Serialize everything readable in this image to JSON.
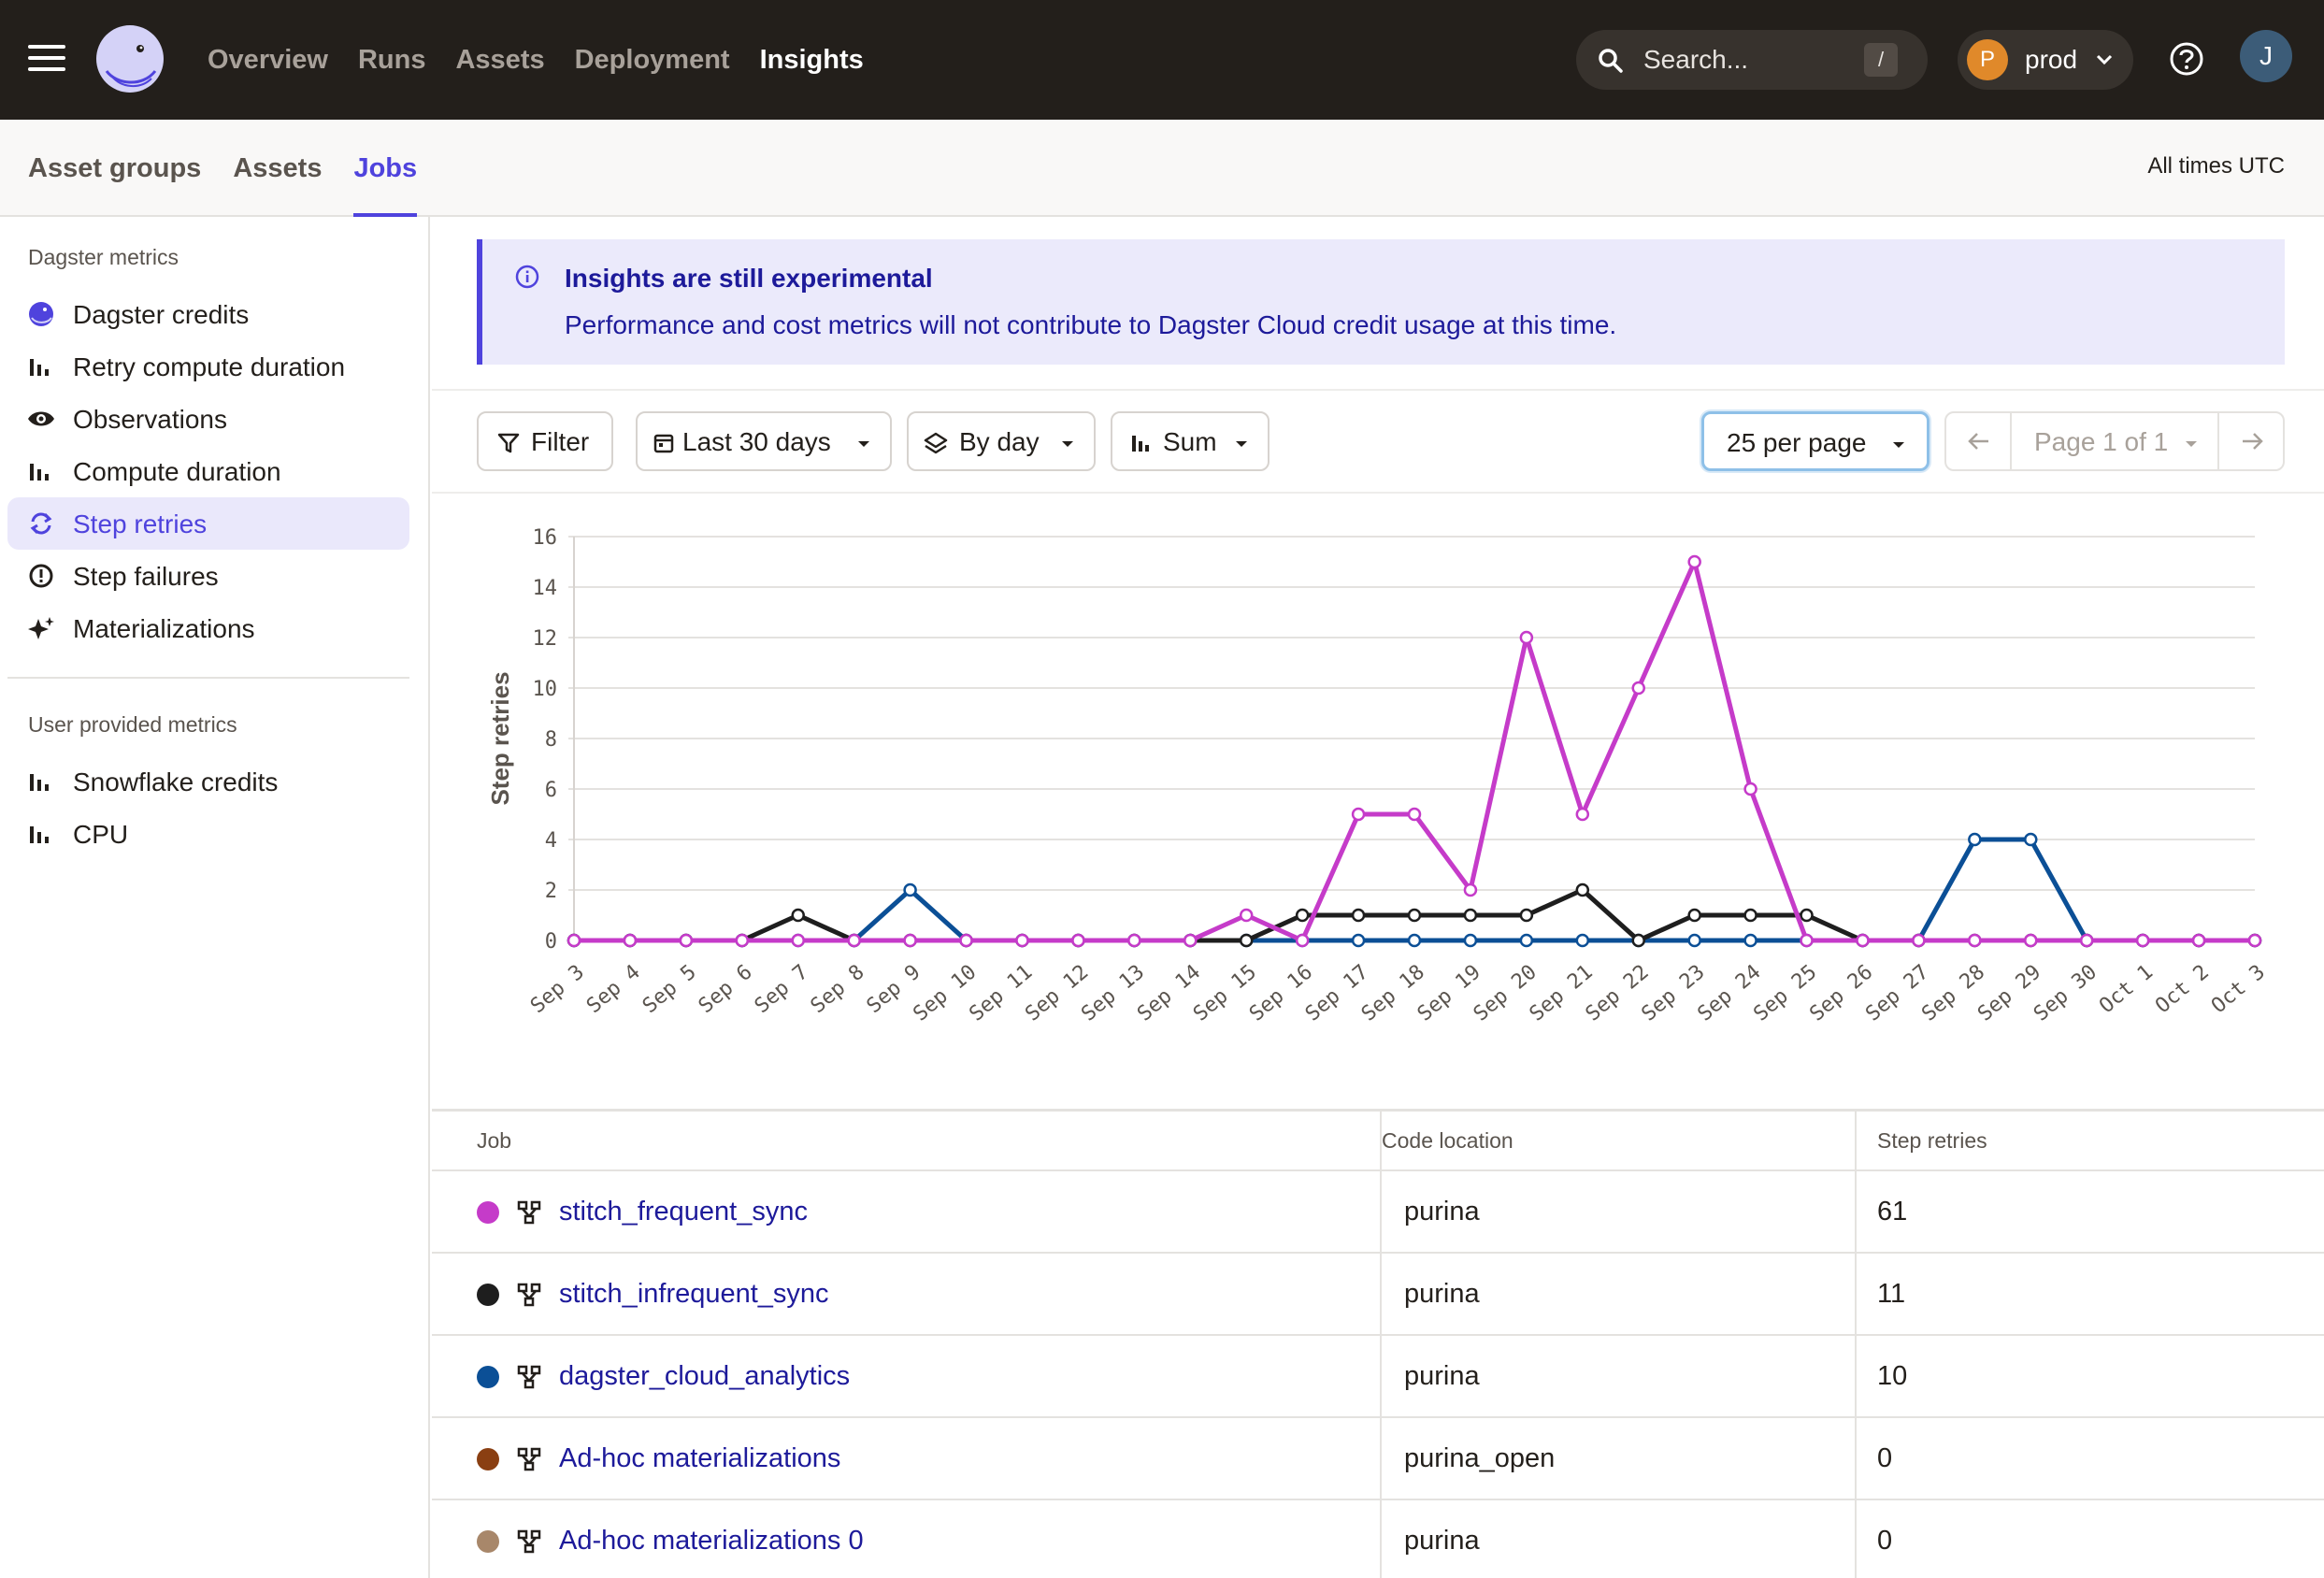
{
  "topbar": {
    "nav": [
      "Overview",
      "Runs",
      "Assets",
      "Deployment",
      "Insights"
    ],
    "active_nav": "Insights",
    "search_placeholder": "Search...",
    "search_shortcut": "/",
    "deployment": {
      "initial": "P",
      "name": "prod"
    },
    "user_initial": "J"
  },
  "subheader": {
    "tabs": [
      "Asset groups",
      "Assets",
      "Jobs"
    ],
    "active_tab": "Jobs",
    "times_label": "All times UTC"
  },
  "sidebar": {
    "dagster_heading": "Dagster metrics",
    "dagster_items": [
      {
        "label": "Dagster credits",
        "icon": "dagster-logo-icon"
      },
      {
        "label": "Retry compute duration",
        "icon": "bar-chart-icon"
      },
      {
        "label": "Observations",
        "icon": "eye-icon"
      },
      {
        "label": "Compute duration",
        "icon": "bar-chart-icon"
      },
      {
        "label": "Step retries",
        "icon": "retry-icon",
        "active": true
      },
      {
        "label": "Step failures",
        "icon": "alert-circle-icon"
      },
      {
        "label": "Materializations",
        "icon": "sparkle-icon"
      }
    ],
    "user_heading": "User provided metrics",
    "user_items": [
      {
        "label": "Snowflake credits",
        "icon": "bar-chart-icon"
      },
      {
        "label": "CPU",
        "icon": "bar-chart-icon"
      }
    ]
  },
  "banner": {
    "title": "Insights are still experimental",
    "text": "Performance and cost metrics will not contribute to Dagster Cloud credit usage at this time."
  },
  "toolbar": {
    "filter": "Filter",
    "range": "Last 30 days",
    "grouping": "By day",
    "aggregation": "Sum",
    "page_size": "25 per page",
    "page_label": "Page 1 of 1"
  },
  "chart_data": {
    "type": "line",
    "ylabel": "Step retries",
    "xlabel": "",
    "ylim": [
      0,
      16
    ],
    "yticks": [
      0,
      2,
      4,
      6,
      8,
      10,
      12,
      14,
      16
    ],
    "grid": true,
    "categories": [
      "Sep 3",
      "Sep 4",
      "Sep 5",
      "Sep 6",
      "Sep 7",
      "Sep 8",
      "Sep 9",
      "Sep 10",
      "Sep 11",
      "Sep 12",
      "Sep 13",
      "Sep 14",
      "Sep 15",
      "Sep 16",
      "Sep 17",
      "Sep 18",
      "Sep 19",
      "Sep 20",
      "Sep 21",
      "Sep 22",
      "Sep 23",
      "Sep 24",
      "Sep 25",
      "Sep 26",
      "Sep 27",
      "Sep 28",
      "Sep 29",
      "Sep 30",
      "Oct 1",
      "Oct 2",
      "Oct 3"
    ],
    "series": [
      {
        "job": "dagster_cloud_analytics",
        "color": "#0b4f96",
        "values": [
          0,
          0,
          0,
          0,
          0,
          0,
          2,
          0,
          0,
          0,
          0,
          0,
          0,
          0,
          0,
          0,
          0,
          0,
          0,
          0,
          0,
          0,
          0,
          0,
          0,
          4,
          4,
          0,
          0,
          0,
          0
        ]
      },
      {
        "job": "stitch_infrequent_sync",
        "color": "#1e1e1e",
        "values": [
          0,
          0,
          0,
          0,
          1,
          0,
          0,
          0,
          0,
          0,
          0,
          0,
          0,
          1,
          1,
          1,
          1,
          1,
          2,
          0,
          1,
          1,
          1,
          0,
          0,
          0,
          0,
          0,
          0,
          0,
          0
        ]
      },
      {
        "job": "stitch_frequent_sync",
        "color": "#c53bc9",
        "values": [
          0,
          0,
          0,
          0,
          0,
          0,
          0,
          0,
          0,
          0,
          0,
          0,
          1,
          0,
          5,
          5,
          2,
          12,
          5,
          10,
          15,
          6,
          0,
          0,
          0,
          0,
          0,
          0,
          0,
          0,
          0
        ]
      }
    ]
  },
  "table": {
    "headers": [
      "Job",
      "Code location",
      "Step retries"
    ],
    "rows": [
      {
        "color": "#c53bc9",
        "job": "stitch_frequent_sync",
        "location": "purina",
        "value": "61"
      },
      {
        "color": "#1e1e1e",
        "job": "stitch_infrequent_sync",
        "location": "purina",
        "value": "11"
      },
      {
        "color": "#0b4f96",
        "job": "dagster_cloud_analytics",
        "location": "purina",
        "value": "10"
      },
      {
        "color": "#8a3f12",
        "job": "Ad-hoc materializations",
        "location": "purina_open",
        "value": "0"
      },
      {
        "color": "#a8876a",
        "job": "Ad-hoc materializations 0",
        "location": "purina",
        "value": "0"
      }
    ]
  }
}
